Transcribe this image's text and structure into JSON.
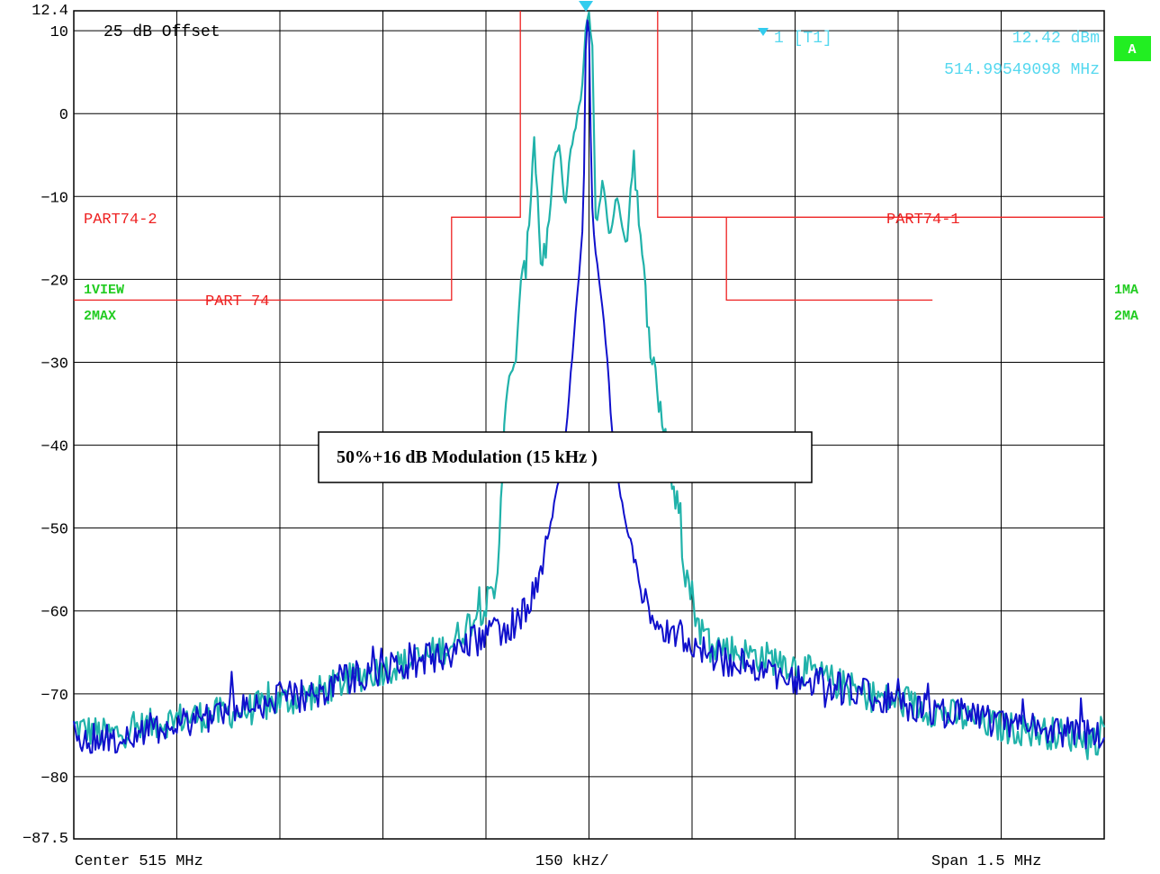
{
  "chart_data": {
    "type": "line",
    "ylim": [
      -87.5,
      12.4
    ],
    "xlim": [
      -750,
      750
    ],
    "x_unit": "kHz",
    "y_ticks": [
      10,
      0,
      -10,
      -20,
      -30,
      -40,
      -50,
      -60,
      -70,
      -80
    ],
    "y_top_label": "12.4",
    "y_bottom_label": "-87.5",
    "offset_label": "25 dB Offset",
    "marker": {
      "label": "1 [T1]",
      "level": "12.42 dBm",
      "frequency": "514.99549098 MHz",
      "x": -4.5,
      "y": 12.42
    },
    "annotation": "50%+16 dB Modulation (15 kHz )",
    "footer": {
      "center": "Center 515 MHz",
      "per_div": "150 kHz/",
      "span": "Span 1.5 MHz"
    },
    "side_labels": {
      "view": "1VIEW",
      "max": "2MAX",
      "right1": "1MA",
      "right2": "2MA",
      "badge": "A"
    },
    "limit_line": {
      "color": "#ee2222",
      "labels": [
        "PART74-2",
        "PART74-1",
        "PART 74"
      ],
      "points": [
        [
          -100,
          12.4
        ],
        [
          -100,
          -12.5
        ],
        [
          -200,
          -12.5
        ],
        [
          -200,
          -22.5
        ],
        [
          -750,
          -22.5
        ],
        null,
        [
          100,
          12.4
        ],
        [
          100,
          -12.5
        ],
        [
          200,
          -12.5
        ],
        [
          200,
          -22.5
        ],
        [
          500,
          -22.5
        ],
        null,
        [
          200,
          -12.5
        ],
        [
          750,
          -12.5
        ]
      ]
    },
    "series": [
      {
        "color": "#20b2aa",
        "points": [
          [
            -750,
            -74
          ],
          [
            -700,
            -75
          ],
          [
            -650,
            -74
          ],
          [
            -600,
            -73
          ],
          [
            -550,
            -72.5
          ],
          [
            -500,
            -72
          ],
          [
            -450,
            -71
          ],
          [
            -400,
            -70
          ],
          [
            -340,
            -68
          ],
          [
            -300,
            -67
          ],
          [
            -250,
            -66
          ],
          [
            -200,
            -64
          ],
          [
            -160,
            -60
          ],
          [
            -135,
            -58
          ],
          [
            -128,
            -46
          ],
          [
            -122,
            -34
          ],
          [
            -110,
            -32
          ],
          [
            -100,
            -22
          ],
          [
            -90,
            -17
          ],
          [
            -80,
            -2
          ],
          [
            -70,
            -18
          ],
          [
            -60,
            -15
          ],
          [
            -50,
            -5
          ],
          [
            -42,
            -4
          ],
          [
            -35,
            -12
          ],
          [
            -28,
            -5
          ],
          [
            -20,
            -2
          ],
          [
            -10,
            3
          ],
          [
            -5,
            10
          ],
          [
            0,
            12
          ],
          [
            5,
            8
          ],
          [
            10,
            -14
          ],
          [
            20,
            -8
          ],
          [
            30,
            -15
          ],
          [
            40,
            -10
          ],
          [
            55,
            -16
          ],
          [
            65,
            -4
          ],
          [
            75,
            -16
          ],
          [
            90,
            -28
          ],
          [
            100,
            -34
          ],
          [
            110,
            -38
          ],
          [
            120,
            -44
          ],
          [
            130,
            -48
          ],
          [
            140,
            -55
          ],
          [
            150,
            -58
          ],
          [
            160,
            -62
          ],
          [
            180,
            -64
          ],
          [
            220,
            -65
          ],
          [
            280,
            -66
          ],
          [
            340,
            -68
          ],
          [
            400,
            -70
          ],
          [
            450,
            -71
          ],
          [
            500,
            -72
          ],
          [
            550,
            -73
          ],
          [
            600,
            -74
          ],
          [
            650,
            -74.5
          ],
          [
            700,
            -75
          ],
          [
            750,
            -75.5
          ]
        ]
      },
      {
        "color": "#1010cc",
        "points": [
          [
            -750,
            -75
          ],
          [
            -700,
            -75.5
          ],
          [
            -650,
            -74.5
          ],
          [
            -600,
            -73.5
          ],
          [
            -550,
            -72.5
          ],
          [
            -500,
            -71.5
          ],
          [
            -450,
            -70.5
          ],
          [
            -400,
            -70
          ],
          [
            -350,
            -68
          ],
          [
            -300,
            -67
          ],
          [
            -250,
            -66
          ],
          [
            -200,
            -65
          ],
          [
            -150,
            -63
          ],
          [
            -100,
            -61
          ],
          [
            -70,
            -55
          ],
          [
            -50,
            -47
          ],
          [
            -35,
            -40
          ],
          [
            -25,
            -30
          ],
          [
            -15,
            -20
          ],
          [
            -8,
            -12
          ],
          [
            -4,
            12.42
          ],
          [
            0,
            10
          ],
          [
            4,
            -10
          ],
          [
            8,
            -16
          ],
          [
            15,
            -20
          ],
          [
            25,
            -28
          ],
          [
            35,
            -40
          ],
          [
            50,
            -48
          ],
          [
            70,
            -56
          ],
          [
            100,
            -62
          ],
          [
            150,
            -64
          ],
          [
            200,
            -66
          ],
          [
            250,
            -67
          ],
          [
            300,
            -68
          ],
          [
            350,
            -69
          ],
          [
            400,
            -70
          ],
          [
            450,
            -71
          ],
          [
            500,
            -72
          ],
          [
            550,
            -72.5
          ],
          [
            600,
            -73.5
          ],
          [
            650,
            -74
          ],
          [
            700,
            -74.5
          ],
          [
            750,
            -75.5
          ]
        ]
      }
    ]
  }
}
